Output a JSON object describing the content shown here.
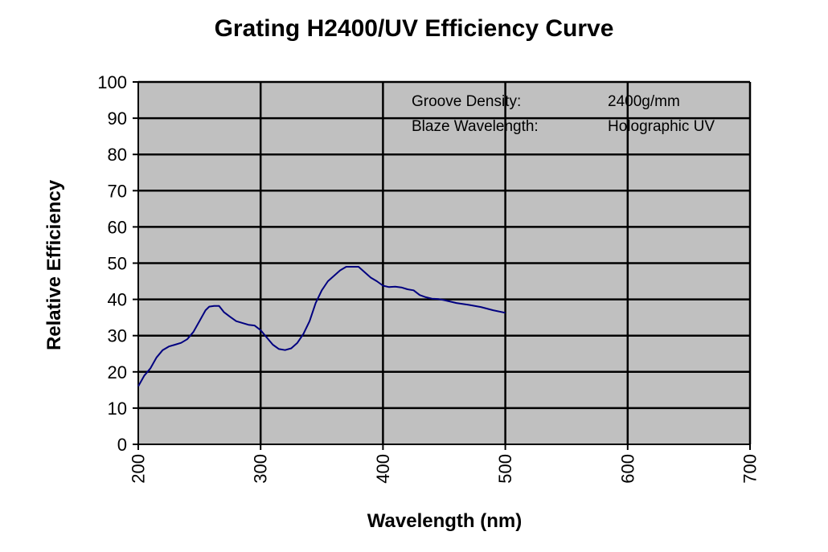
{
  "chart_data": {
    "type": "line",
    "title": "Grating H2400/UV Efficiency Curve",
    "xlabel": "Wavelength (nm)",
    "ylabel": "Relative Efficiency",
    "xlim": [
      200,
      700
    ],
    "ylim": [
      0,
      100
    ],
    "x_ticks": [
      200,
      300,
      400,
      500,
      600,
      700
    ],
    "y_ticks": [
      0,
      10,
      20,
      30,
      40,
      50,
      60,
      70,
      80,
      90,
      100
    ],
    "grid": true,
    "colors": {
      "plot_background": "#c0c0c0",
      "series_line": "#000080",
      "gridline": "#000000"
    },
    "annotations": [
      {
        "label": "Groove Density:",
        "value": "2400g/mm"
      },
      {
        "label": "Blaze Wavelength:",
        "value": "Holographic UV"
      }
    ],
    "series": [
      {
        "name": "Relative Efficiency",
        "x": [
          200,
          205,
          210,
          215,
          220,
          225,
          230,
          235,
          240,
          245,
          250,
          255,
          258,
          262,
          266,
          270,
          275,
          280,
          285,
          290,
          295,
          300,
          305,
          310,
          315,
          320,
          325,
          330,
          335,
          340,
          345,
          350,
          355,
          360,
          365,
          370,
          375,
          380,
          385,
          390,
          395,
          400,
          405,
          410,
          415,
          420,
          425,
          430,
          435,
          440,
          445,
          450,
          460,
          470,
          480,
          490,
          500
        ],
        "y": [
          16,
          19,
          21,
          24,
          26,
          27,
          27.5,
          28,
          29,
          31,
          34,
          37,
          38,
          38.2,
          38.2,
          36.5,
          35.2,
          34,
          33.5,
          33,
          32.8,
          31.5,
          29.5,
          27.5,
          26.3,
          26,
          26.5,
          28,
          30.5,
          34,
          39,
          42.5,
          45,
          46.5,
          48,
          49,
          49,
          49,
          47.5,
          46,
          45,
          43.8,
          43.4,
          43.5,
          43.3,
          42.8,
          42.5,
          41.2,
          40.6,
          40.2,
          40.1,
          39.8,
          39,
          38.5,
          37.9,
          37,
          36.3
        ]
      }
    ]
  }
}
